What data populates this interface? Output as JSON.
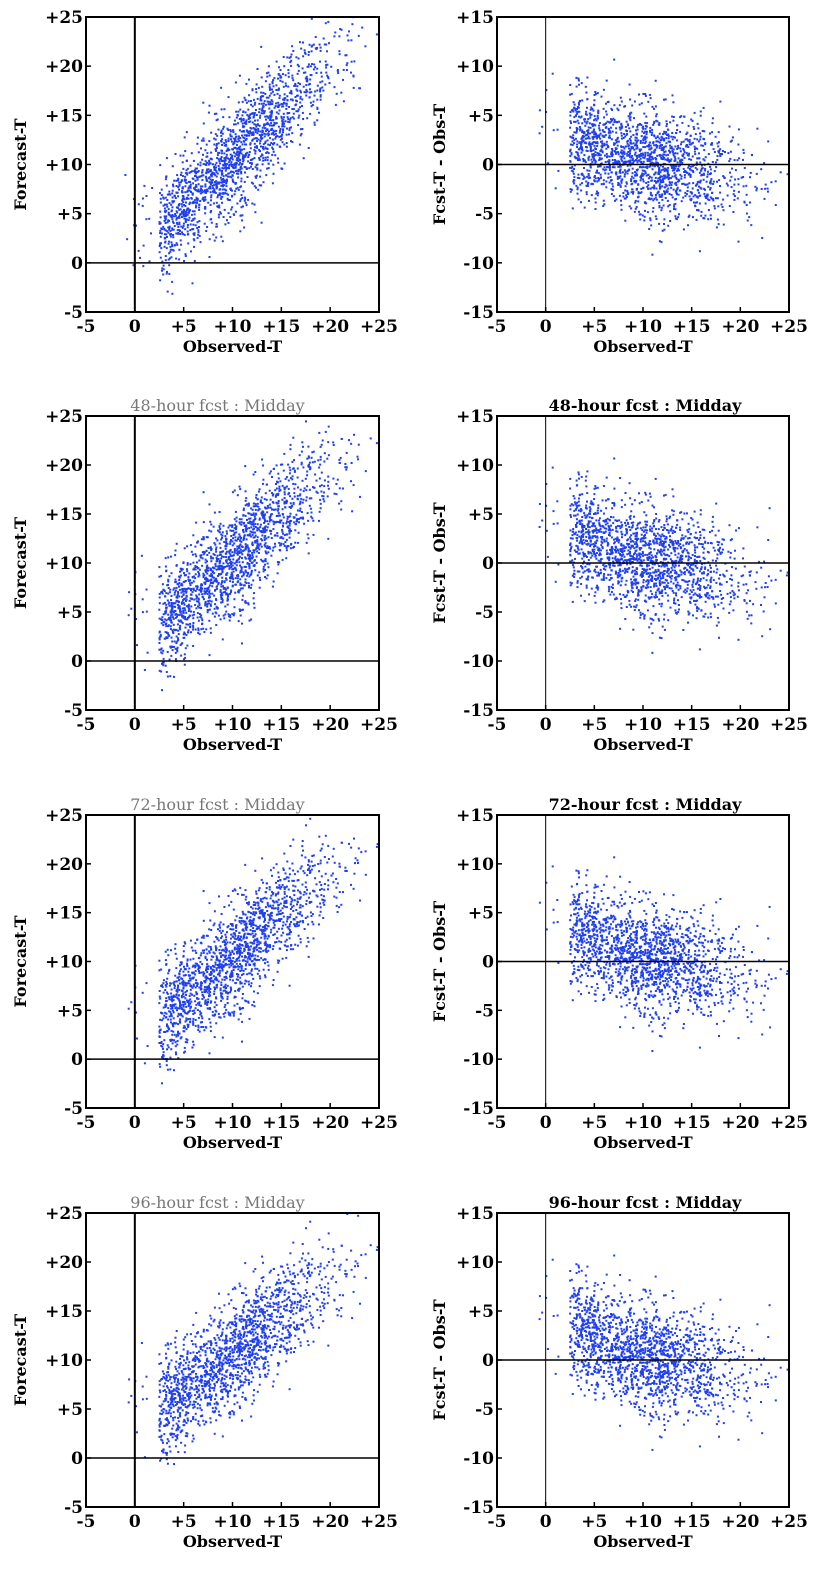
{
  "chart_data": [
    {
      "type": "scatter",
      "title": "",
      "xlabel": "Observed-T",
      "ylabel": "Forecast-T",
      "xlim": [
        -5,
        25
      ],
      "ylim": [
        -5,
        25
      ],
      "xticks": [
        "-5",
        "0",
        "+5",
        "+10",
        "+15",
        "+20",
        "+25"
      ],
      "yticks": [
        "-5",
        "0",
        "+5",
        "+10",
        "+15",
        "+20",
        "+25"
      ],
      "zero_lines": true,
      "marker_color": "#1f3ff0",
      "series": [
        {
          "x": [
            3,
            5,
            7,
            9,
            11,
            13,
            15,
            17,
            19,
            21,
            23
          ],
          "y": [
            3.5,
            5.5,
            7.5,
            9.5,
            11.5,
            13.5,
            15.5,
            17.5,
            19.5,
            21,
            22.5
          ]
        }
      ]
    },
    {
      "type": "scatter",
      "title": "",
      "xlabel": "Observed-T",
      "ylabel": "Fcst-T - Obs-T",
      "xlim": [
        -5,
        25
      ],
      "ylim": [
        -15,
        15
      ],
      "xticks": [
        "-5",
        "0",
        "+5",
        "+10",
        "+15",
        "+20",
        "+25"
      ],
      "yticks": [
        "-15",
        "-10",
        "-5",
        "0",
        "+5",
        "+10",
        "+15"
      ],
      "zero_lines": true,
      "marker_color": "#1f3ff0",
      "series": [
        {
          "x": [
            3,
            5,
            7,
            9,
            11,
            13,
            15,
            17,
            19,
            21,
            23
          ],
          "y": [
            2.5,
            1.5,
            1,
            0.5,
            0,
            -0.5,
            -0.5,
            -1,
            -1,
            -1.5,
            -2
          ]
        }
      ]
    },
    {
      "type": "scatter",
      "title": "48-hour  fcst  :  Midday",
      "xlabel": "Observed-T",
      "ylabel": "Forecast-T",
      "xlim": [
        -5,
        25
      ],
      "ylim": [
        -5,
        25
      ],
      "xticks": [
        "-5",
        "0",
        "+5",
        "+10",
        "+15",
        "+20",
        "+25"
      ],
      "yticks": [
        "-5",
        "0",
        "+5",
        "+10",
        "+15",
        "+20",
        "+25"
      ],
      "zero_lines": true,
      "marker_color": "#1f3ff0",
      "series": [
        {
          "x": [
            3,
            5,
            7,
            9,
            11,
            13,
            15,
            17,
            19,
            21,
            23
          ],
          "y": [
            4,
            5.5,
            7.5,
            9.5,
            11,
            13,
            15,
            17,
            18.5,
            20,
            21.5
          ]
        }
      ]
    },
    {
      "type": "scatter",
      "title": "48-hour  fcst  :  Midday",
      "xlabel": "Observed-T",
      "ylabel": "Fcst-T - Obs-T",
      "xlim": [
        -5,
        25
      ],
      "ylim": [
        -15,
        15
      ],
      "xticks": [
        "-5",
        "0",
        "+5",
        "+10",
        "+15",
        "+20",
        "+25"
      ],
      "yticks": [
        "-15",
        "-10",
        "-5",
        "0",
        "+5",
        "+10",
        "+15"
      ],
      "zero_lines": true,
      "marker_color": "#1f3ff0",
      "series": [
        {
          "x": [
            3,
            5,
            7,
            9,
            11,
            13,
            15,
            17,
            19,
            21,
            23
          ],
          "y": [
            3,
            2,
            1,
            0.5,
            0,
            0,
            -0.5,
            -1,
            -1,
            -1.5,
            -2
          ]
        }
      ]
    },
    {
      "type": "scatter",
      "title": "72-hour  fcst  :  Midday",
      "xlabel": "Observed-T",
      "ylabel": "Forecast-T",
      "xlim": [
        -5,
        25
      ],
      "ylim": [
        -5,
        25
      ],
      "xticks": [
        "-5",
        "0",
        "+5",
        "+10",
        "+15",
        "+20",
        "+25"
      ],
      "yticks": [
        "-5",
        "0",
        "+5",
        "+10",
        "+15",
        "+20",
        "+25"
      ],
      "zero_lines": true,
      "marker_color": "#1f3ff0",
      "series": [
        {
          "x": [
            3,
            5,
            7,
            9,
            11,
            13,
            15,
            17,
            19,
            21,
            23
          ],
          "y": [
            4.5,
            6,
            7.5,
            9.5,
            11,
            13,
            15,
            16.5,
            18,
            19.5,
            21
          ]
        }
      ]
    },
    {
      "type": "scatter",
      "title": "72-hour  fcst  :  Midday",
      "xlabel": "Observed-T",
      "ylabel": "Fcst-T - Obs-T",
      "xlim": [
        -5,
        25
      ],
      "ylim": [
        -15,
        15
      ],
      "xticks": [
        "-5",
        "0",
        "+5",
        "+10",
        "+15",
        "+20",
        "+25"
      ],
      "yticks": [
        "-15",
        "-10",
        "-5",
        "0",
        "+5",
        "+10",
        "+15"
      ],
      "zero_lines": true,
      "marker_color": "#1f3ff0",
      "series": [
        {
          "x": [
            3,
            5,
            7,
            9,
            11,
            13,
            15,
            17,
            19,
            21,
            23
          ],
          "y": [
            3,
            2,
            1,
            0.5,
            0,
            0,
            -0.5,
            -1,
            -1,
            -1.5,
            -2
          ]
        }
      ]
    },
    {
      "type": "scatter",
      "title": "96-hour  fcst  :  Midday",
      "xlabel": "Observed-T",
      "ylabel": "Forecast-T",
      "xlim": [
        -5,
        25
      ],
      "ylim": [
        -5,
        25
      ],
      "xticks": [
        "-5",
        "0",
        "+5",
        "+10",
        "+15",
        "+20",
        "+25"
      ],
      "yticks": [
        "-5",
        "0",
        "+5",
        "+10",
        "+15",
        "+20",
        "+25"
      ],
      "zero_lines": true,
      "marker_color": "#1f3ff0",
      "series": [
        {
          "x": [
            3,
            5,
            7,
            9,
            11,
            13,
            15,
            17,
            19,
            21,
            23
          ],
          "y": [
            5,
            6.5,
            8,
            9.5,
            11,
            13,
            14.5,
            16,
            17.5,
            19,
            20.5
          ]
        }
      ]
    },
    {
      "type": "scatter",
      "title": "96-hour  fcst  :  Midday",
      "xlabel": "Observed-T",
      "ylabel": "Fcst-T - Obs-T",
      "xlim": [
        -5,
        25
      ],
      "ylim": [
        -15,
        15
      ],
      "xticks": [
        "-5",
        "0",
        "+5",
        "+10",
        "+15",
        "+20",
        "+25"
      ],
      "yticks": [
        "-15",
        "-10",
        "-5",
        "0",
        "+5",
        "+10",
        "+15"
      ],
      "zero_lines": true,
      "marker_color": "#1f3ff0",
      "series": [
        {
          "x": [
            3,
            5,
            7,
            9,
            11,
            13,
            15,
            17,
            19,
            21,
            23
          ],
          "y": [
            3.5,
            2,
            1,
            0.5,
            0,
            -0.5,
            -0.5,
            -1,
            -1.5,
            -1.5,
            -2
          ]
        }
      ]
    }
  ]
}
